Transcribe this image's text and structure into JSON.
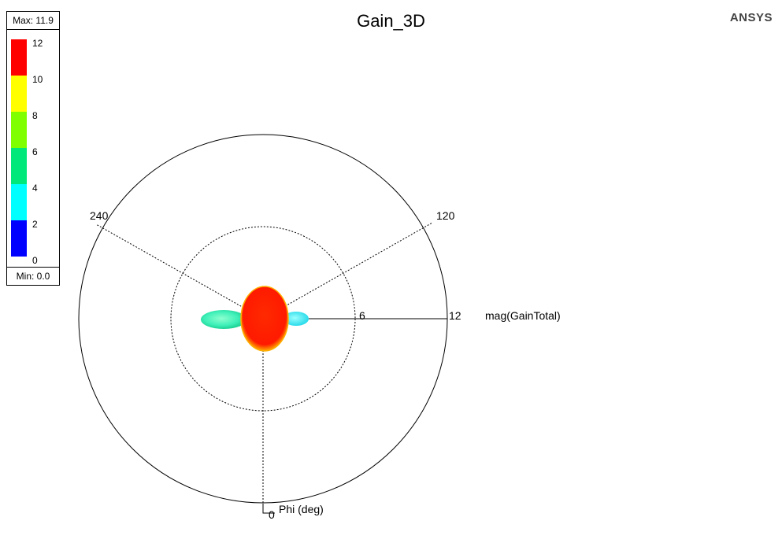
{
  "chart_data": {
    "type": "polar-3d",
    "title": "Gain_3D",
    "brand": "ANSYS",
    "quantity_label": "mag(GainTotal)",
    "angle_label": "Phi (deg)",
    "radial_ticks": [
      "6",
      "12"
    ],
    "radial_range": [
      0,
      12
    ],
    "angle_ticks": [
      "0",
      "120",
      "240"
    ],
    "legend": {
      "max_label": "Max: 11.9",
      "min_label": "Min: 0.0",
      "ticks": [
        "12",
        "10",
        "8",
        "6",
        "4",
        "2",
        "0"
      ],
      "colors": [
        "#ff0000",
        "#ffff00",
        "#80ff00",
        "#00e87a",
        "#00ffff",
        "#0000ff"
      ]
    },
    "grid": true
  }
}
